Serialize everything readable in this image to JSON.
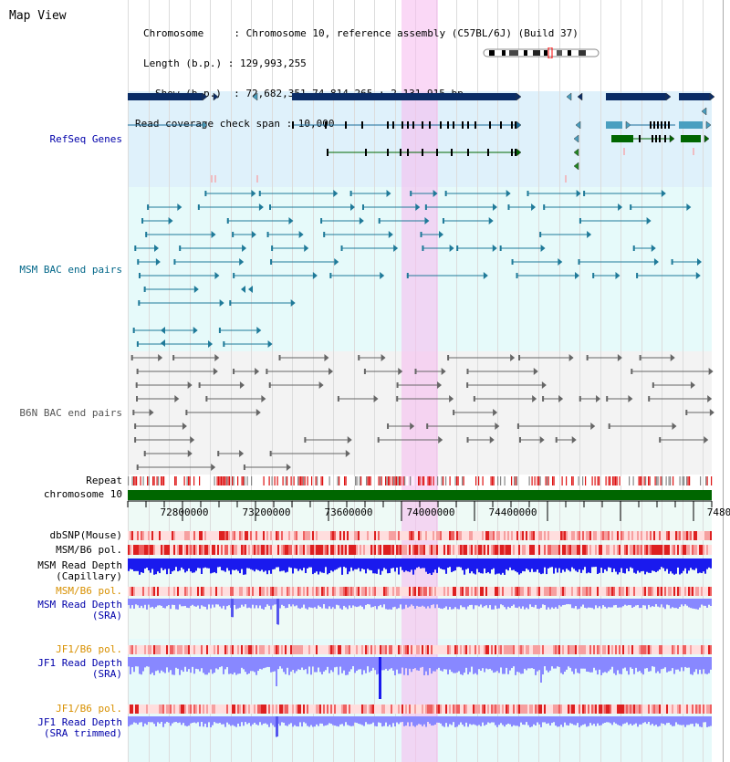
{
  "header": {
    "title": "Map View",
    "info_lines": [
      "Chromosome     : Chromosome 10, reference assembly (C57BL/6J) (Build 37)",
      "Length (b.p.) : 129,993,255",
      "Show (b.p.)  : 72,682,351-74,814,265 : 2,131,915 bp",
      "Read coverage check span : 10,000"
    ]
  },
  "tracks": {
    "refseq": "RefSeq Genes",
    "msm_bac": "MSM BAC end pairs",
    "b6n_bac": "B6N BAC end pairs",
    "repeat": "Repeat",
    "chromosome": "chromosome 10",
    "dbsnp": "dbSNP(Mouse)",
    "msm_b6_pol_1": "MSM/B6 pol.",
    "msm_depth_cap_1": "MSM Read Depth",
    "msm_depth_cap_2": "(Capillary)",
    "msm_b6_pol_2": "MSM/B6 pol.",
    "msm_depth_sra_1": "MSM Read Depth",
    "msm_depth_sra_2": "(SRA)",
    "jf1_b6_pol_1": "JF1/B6 pol.",
    "jf1_depth_sra_1": "JF1 Read Depth",
    "jf1_depth_sra_2": "(SRA)",
    "jf1_b6_pol_2": "JF1/B6 pol.",
    "jf1_depth_trim_1": "JF1 Read Depth",
    "jf1_depth_trim_2": "(SRA trimmed)"
  },
  "scale": {
    "ticks": [
      "72800000",
      "73200000",
      "73600000",
      "74000000",
      "74400000",
      "7480"
    ]
  },
  "colors": {
    "highlight": "#f7d4f2",
    "refseq_bg": "#dff1fb",
    "bac_bg": "#e6fafa",
    "gene_dark": "#0a2c66",
    "gene_teal": "#4a9fc0",
    "gene_green": "#006600",
    "chrom_bar": "#006600",
    "depth_blue": "#1a1aee",
    "depth_light": "#8888ff"
  }
}
